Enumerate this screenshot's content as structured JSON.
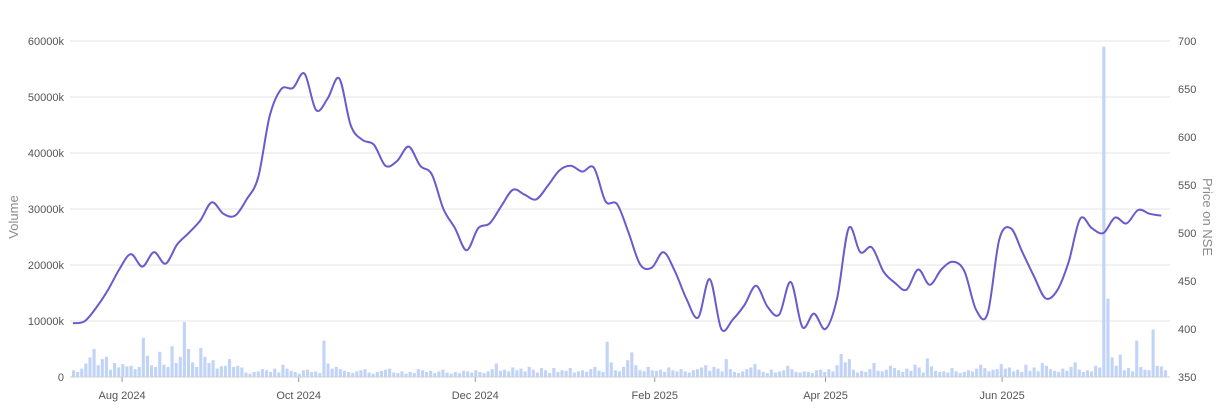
{
  "chart_data": {
    "type": "bar+line",
    "title": "",
    "x_labels": [
      "Aug 2024",
      "Oct 2024",
      "Dec 2024",
      "Feb 2025",
      "Apr 2025",
      "Jun 2025"
    ],
    "left_axis": {
      "title": "Volume",
      "range": [
        0,
        60000
      ],
      "ticks": [
        0,
        10000,
        20000,
        30000,
        40000,
        50000,
        60000
      ],
      "tick_labels": [
        "0",
        "10000k",
        "20000k",
        "30000k",
        "40000k",
        "50000k",
        "60000k"
      ]
    },
    "right_axis": {
      "title": "Price on NSE",
      "range": [
        350,
        700
      ],
      "ticks": [
        350,
        400,
        450,
        500,
        550,
        600,
        650,
        700
      ],
      "tick_labels": [
        "350",
        "400",
        "450",
        "500",
        "550",
        "600",
        "650",
        "700"
      ]
    },
    "grid": true,
    "price_series": {
      "name": "Price on NSE",
      "color": "#6a5acd",
      "x": [
        "2024-07-15",
        "2024-07-19",
        "2024-07-23",
        "2024-07-27",
        "2024-07-31",
        "2024-08-04",
        "2024-08-08",
        "2024-08-12",
        "2024-08-16",
        "2024-08-20",
        "2024-08-24",
        "2024-08-28",
        "2024-09-01",
        "2024-09-05",
        "2024-09-09",
        "2024-09-13",
        "2024-09-17",
        "2024-09-21",
        "2024-09-25",
        "2024-09-29",
        "2024-10-03",
        "2024-10-07",
        "2024-10-11",
        "2024-10-15",
        "2024-10-19",
        "2024-10-23",
        "2024-10-27",
        "2024-10-31",
        "2024-11-04",
        "2024-11-08",
        "2024-11-12",
        "2024-11-16",
        "2024-11-20",
        "2024-11-24",
        "2024-11-28",
        "2024-12-02",
        "2024-12-06",
        "2024-12-10",
        "2024-12-14",
        "2024-12-18",
        "2024-12-22",
        "2024-12-26",
        "2024-12-30",
        "2025-01-03",
        "2025-01-07",
        "2025-01-11",
        "2025-01-15",
        "2025-01-19",
        "2025-01-23",
        "2025-01-27",
        "2025-01-31",
        "2025-02-04",
        "2025-02-08",
        "2025-02-12",
        "2025-02-16",
        "2025-02-20",
        "2025-02-24",
        "2025-02-28",
        "2025-03-04",
        "2025-03-08",
        "2025-03-12",
        "2025-03-16",
        "2025-03-20",
        "2025-03-24",
        "2025-03-28",
        "2025-04-01",
        "2025-04-05",
        "2025-04-09",
        "2025-04-13",
        "2025-04-17",
        "2025-04-21",
        "2025-04-25",
        "2025-04-29",
        "2025-05-03",
        "2025-05-07",
        "2025-05-11",
        "2025-05-15",
        "2025-05-19",
        "2025-05-23",
        "2025-05-27",
        "2025-05-31",
        "2025-06-04",
        "2025-06-08",
        "2025-06-12",
        "2025-06-16",
        "2025-06-20",
        "2025-06-24",
        "2025-06-28",
        "2025-07-02",
        "2025-07-06",
        "2025-07-10",
        "2025-07-14",
        "2025-07-18",
        "2025-07-22",
        "2025-07-26"
      ],
      "values": [
        406,
        408,
        422,
        440,
        462,
        478,
        465,
        480,
        468,
        488,
        500,
        513,
        532,
        520,
        518,
        535,
        558,
        622,
        650,
        651,
        666,
        628,
        640,
        661,
        612,
        597,
        592,
        570,
        575,
        590,
        570,
        561,
        525,
        505,
        482,
        505,
        510,
        528,
        545,
        540,
        535,
        549,
        565,
        570,
        564,
        568,
        533,
        530,
        500,
        467,
        464,
        480,
        460,
        431,
        412,
        452,
        400,
        410,
        425,
        445,
        423,
        415,
        449,
        402,
        416,
        400,
        432,
        505,
        480,
        485,
        460,
        448,
        441,
        462,
        446,
        462,
        470,
        460,
        420,
        416,
        493,
        505,
        480,
        455,
        432,
        440,
        470,
        515,
        505,
        500,
        516,
        510,
        524,
        520,
        518
      ]
    },
    "volume_series": {
      "name": "Volume",
      "color": "#c1d3f7",
      "values": [
        1200,
        900,
        1500,
        2400,
        3500,
        5000,
        2100,
        3200,
        3600,
        1300,
        2500,
        1700,
        2300,
        1900,
        2000,
        1400,
        1800,
        7000,
        3800,
        2100,
        1800,
        4500,
        2200,
        1800,
        5500,
        2500,
        3600,
        9800,
        5000,
        2600,
        1800,
        5200,
        3600,
        2500,
        3000,
        1500,
        1900,
        2000,
        3200,
        1800,
        2000,
        1700,
        800,
        600,
        900,
        1000,
        1400,
        1200,
        900,
        1500,
        800,
        2200,
        1500,
        1100,
        900,
        600,
        1200,
        1300,
        900,
        1000,
        700,
        6500,
        2400,
        1500,
        1800,
        1400,
        1100,
        900,
        700,
        1000,
        1200,
        1400,
        800,
        600,
        900,
        1100,
        1300,
        1500,
        800,
        700,
        1000,
        600,
        900,
        700,
        1400,
        1200,
        900,
        1100,
        700,
        1000,
        1300,
        800,
        600,
        900,
        700,
        1100,
        1000,
        800,
        1200,
        900,
        700,
        1000,
        1400,
        2400,
        1100,
        1300,
        1000,
        1700,
        1200,
        1500,
        1000,
        1800,
        1300,
        800,
        1600,
        1200,
        700,
        1600,
        900,
        1200,
        1100,
        1600,
        800,
        1000,
        1200,
        900,
        1400,
        1800,
        1100,
        900,
        6300,
        2600,
        1200,
        1000,
        1800,
        3000,
        4400,
        2100,
        1200,
        1000,
        1800,
        1200,
        1100,
        1300,
        900,
        1700,
        1200,
        1000,
        1400,
        1000,
        800,
        1200,
        1400,
        1700,
        2100,
        1100,
        1800,
        1500,
        1000,
        3200,
        1400,
        900,
        700,
        1000,
        1400,
        1700,
        2300,
        1300,
        900,
        700,
        1300,
        800,
        1000,
        1200,
        2000,
        1400,
        900,
        800,
        1000,
        900,
        700,
        1200,
        1300,
        900,
        1400,
        1000,
        2100,
        4100,
        2600,
        3200,
        1300,
        800,
        1100,
        900,
        1400,
        2500,
        1100,
        1000,
        1300,
        2000,
        1600,
        1200,
        900,
        1500,
        1100,
        2200,
        1700,
        800,
        3300,
        1900,
        1100,
        900,
        1000,
        800,
        1600,
        1000,
        700,
        900,
        1200,
        1000,
        1500,
        2200,
        1600,
        1000,
        1300,
        1400,
        2300,
        1500,
        1700,
        1000,
        1300,
        900,
        2200,
        1100,
        1700,
        1000,
        2500,
        2000,
        1400,
        1100,
        900,
        1500,
        1100,
        1800,
        2600,
        1300,
        900,
        1200,
        1000,
        2000,
        1700,
        59000,
        14000,
        3500,
        2000,
        4000,
        1200,
        1600,
        1000,
        6500,
        1800,
        1300,
        1200,
        8500,
        2000,
        1900,
        1200
      ]
    }
  }
}
